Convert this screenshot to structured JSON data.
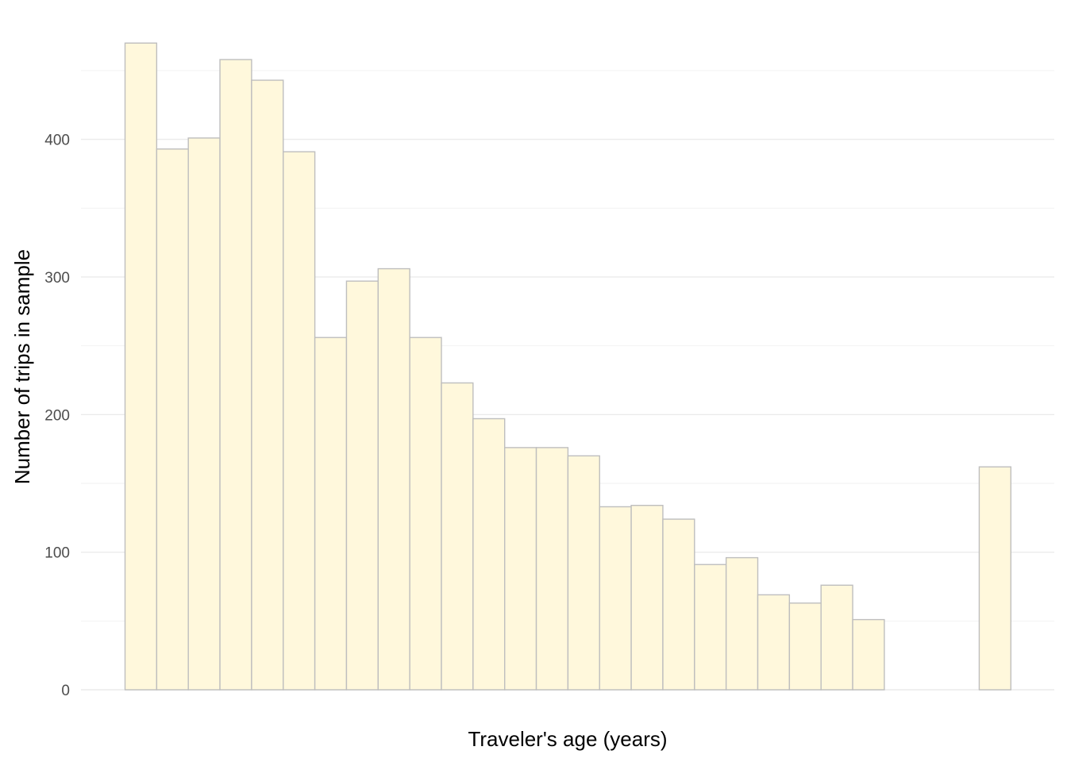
{
  "chart_data": {
    "type": "bar",
    "title": "",
    "xlabel": "Traveler's age (years)",
    "ylabel": "Number of trips in sample",
    "ylim": [
      0,
      470
    ],
    "y_ticks": [
      0,
      100,
      200,
      300,
      400
    ],
    "x_tick_labels_visible": false,
    "grid": true,
    "legend": "none",
    "bar_fill": "#FFF8DC",
    "bar_stroke": "#BEBEBE",
    "grid_color": "#EBEBEB",
    "values": [
      470,
      393,
      401,
      458,
      443,
      391,
      256,
      297,
      306,
      256,
      223,
      197,
      176,
      176,
      170,
      133,
      134,
      124,
      91,
      96,
      69,
      63,
      76,
      51,
      0,
      0,
      0,
      162
    ]
  }
}
